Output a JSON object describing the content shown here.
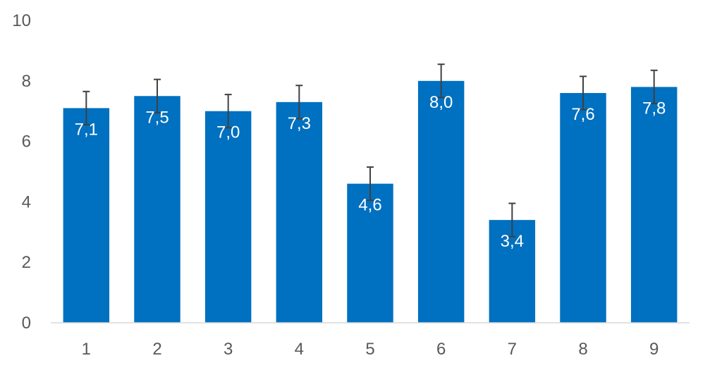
{
  "chart_data": {
    "type": "bar",
    "categories": [
      "1",
      "2",
      "3",
      "4",
      "5",
      "6",
      "7",
      "8",
      "9"
    ],
    "values": [
      7.1,
      7.5,
      7.0,
      7.3,
      4.6,
      8.0,
      3.4,
      7.6,
      7.8
    ],
    "value_labels": [
      "7,1",
      "7,5",
      "7,0",
      "7,3",
      "4,6",
      "8,0",
      "3,4",
      "7,6",
      "7,8"
    ],
    "error_plus": [
      0.55,
      0.55,
      0.55,
      0.55,
      0.55,
      0.55,
      0.55,
      0.55,
      0.55
    ],
    "error_minus": [
      0.55,
      0.55,
      0.55,
      0.55,
      0.55,
      0.55,
      0.55,
      0.55,
      0.55
    ],
    "yticks": [
      "0",
      "2",
      "4",
      "6",
      "8",
      "10"
    ],
    "ylim": [
      0,
      10
    ],
    "grid": false,
    "legend": "none",
    "title": "",
    "xlabel": "",
    "ylabel": "",
    "colors": {
      "bar": "#0070C0",
      "error_bar": "#404040",
      "axis": "#D9D9D9",
      "tick_text": "#595959",
      "data_label": "#FFFFFF"
    }
  }
}
